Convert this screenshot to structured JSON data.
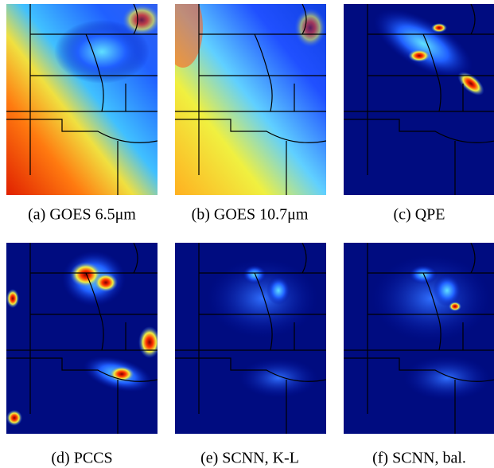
{
  "panels": [
    {
      "caption": "(a) GOES 6.5μm"
    },
    {
      "caption": "(b) GOES 10.7μm"
    },
    {
      "caption": "(c) QPE"
    },
    {
      "caption": "(d) PCCS"
    },
    {
      "caption": "(e) SCNN, K-L"
    },
    {
      "caption": "(f) SCNN, bal."
    }
  ]
}
